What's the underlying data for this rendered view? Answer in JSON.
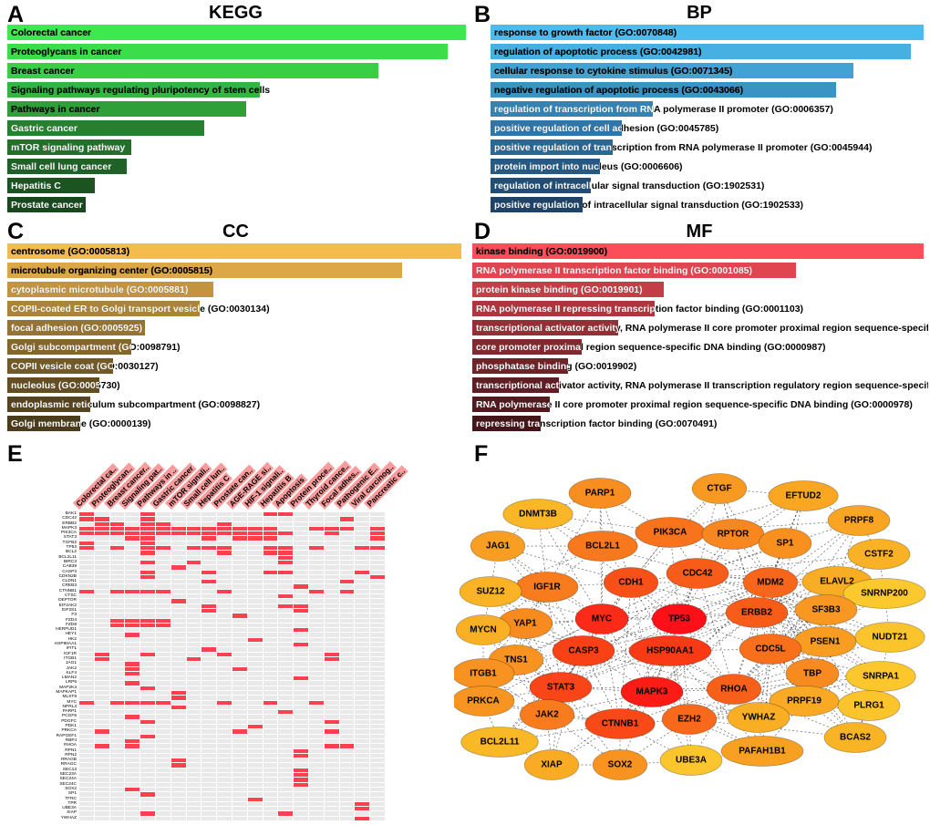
{
  "figure": {
    "panels": {
      "A": {
        "letter": "A"
      },
      "B": {
        "letter": "B"
      },
      "C": {
        "letter": "C"
      },
      "D": {
        "letter": "D"
      },
      "E": {
        "letter": "E"
      },
      "F": {
        "letter": "F"
      }
    }
  },
  "chart_data": [
    {
      "type": "bar",
      "title": "KEGG",
      "orientation": "horizontal",
      "categories": [
        "Colorectal cancer",
        "Proteoglycans in cancer",
        "Breast cancer",
        "Signaling pathways regulating pluripotency of stem cells",
        "Pathways in cancer",
        "Gastric cancer",
        "mTOR signaling pathway",
        "Small cell lung cancer",
        "Hepatitis C",
        "Prostate cancer"
      ],
      "values": [
        100,
        96,
        81,
        55,
        52,
        43,
        27,
        26,
        19,
        17
      ],
      "colors": [
        "#3ee94f",
        "#3bdd4b",
        "#38cf47",
        "#35b441",
        "#2f9f3a",
        "#287f30",
        "#23702b",
        "#1f6126",
        "#1b5421",
        "#18481d"
      ],
      "label_text_colors": [
        "#000000",
        "#000000",
        "#000000",
        "#000000",
        "#000000",
        "#ffffff",
        "#ffffff",
        "#ffffff",
        "#ffffff",
        "#ffffff"
      ]
    },
    {
      "type": "bar",
      "title": "BP",
      "orientation": "horizontal",
      "categories": [
        "response to growth factor (GO:0070848)",
        "regulation of apoptotic process (GO:0042981)",
        "cellular response to cytokine stimulus (GO:0071345)",
        "negative regulation of apoptotic process (GO:0043066)",
        "regulation of transcription from RNA polymerase II promoter (GO:0006357)",
        "positive regulation of cell adhesion (GO:0045785)",
        "positive regulation of transcription from RNA polymerase II promoter (GO:0045944)",
        "protein import into nucleus (GO:0006606)",
        "regulation of intracellular signal transduction (GO:1902531)",
        "positive regulation of intracellular signal transduction (GO:1902533)"
      ],
      "values": [
        99,
        96,
        83,
        79,
        37,
        30,
        28,
        25,
        23,
        21
      ],
      "colors": [
        "#4cbcee",
        "#47b0e2",
        "#41a2d3",
        "#3b93c3",
        "#3583b2",
        "#3075a3",
        "#2b6793",
        "#265a84",
        "#224e75",
        "#1e4367"
      ],
      "label_text_colors": [
        "#000000",
        "#000000",
        "#000000",
        "#000000",
        "#ffffff",
        "#ffffff",
        "#ffffff",
        "#ffffff",
        "#ffffff",
        "#ffffff"
      ]
    },
    {
      "type": "bar",
      "title": "CC",
      "orientation": "horizontal",
      "categories": [
        "centrosome (GO:0005813)",
        "microtubule organizing center (GO:0005815)",
        "cytoplasmic microtubule (GO:0005881)",
        "COPII-coated ER to Golgi transport vesicle (GO:0030134)",
        "focal adhesion (GO:0005925)",
        "Golgi subcompartment (GO:0098791)",
        "COPII vesicle coat (GO:0030127)",
        "nucleolus (GO:0005730)",
        "endoplasmic reticulum subcompartment (GO:0098827)",
        "Golgi membrane (GO:0000139)"
      ],
      "values": [
        99,
        86,
        45,
        42,
        30,
        27,
        23,
        20,
        18,
        16
      ],
      "colors": [
        "#f6bb4d",
        "#dca746",
        "#c29440",
        "#ab8339",
        "#967333",
        "#83652d",
        "#725928",
        "#634e24",
        "#564420",
        "#4b3c1c"
      ],
      "label_text_colors": [
        "#000000",
        "#000000",
        "#ffffff",
        "#ffffff",
        "#ffffff",
        "#ffffff",
        "#ffffff",
        "#ffffff",
        "#ffffff",
        "#ffffff"
      ]
    },
    {
      "type": "bar",
      "title": "MF",
      "orientation": "horizontal",
      "categories": [
        "kinase binding (GO:0019900)",
        "RNA polymerase II transcription factor binding (GO:0001085)",
        "protein kinase binding (GO:0019901)",
        "RNA polymerase II repressing transcription factor binding (GO:0001103)",
        "transcriptional activator activity, RNA polymerase II core promoter proximal region sequence-specific binding (G",
        "core promoter proximal region sequence-specific DNA binding (GO:0000987)",
        "phosphatase binding (GO:0019902)",
        "transcriptional activator activity, RNA polymerase II transcription regulatory region sequence-specific binding (G",
        "RNA polymerase II core promoter proximal region sequence-specific DNA binding (GO:0000978)",
        "repressing transcription factor binding (GO:0070491)"
      ],
      "values": [
        99,
        71,
        42,
        40,
        32,
        24,
        21,
        19,
        17,
        15
      ],
      "colors": [
        "#fb4e58",
        "#df4650",
        "#c43e47",
        "#ab363e",
        "#942f36",
        "#80292f",
        "#6e2329",
        "#5e1e23",
        "#501a1e",
        "#44161a"
      ],
      "label_text_colors": [
        "#000000",
        "#ffffff",
        "#ffffff",
        "#ffffff",
        "#ffffff",
        "#ffffff",
        "#ffffff",
        "#ffffff",
        "#ffffff",
        "#ffffff"
      ]
    },
    {
      "type": "heatmap",
      "hit_color": "#fb4150",
      "empty_color": "#e9e9e9",
      "header_highlight_color": "#fa9c9c",
      "columns": [
        "Colorectal ca..",
        "Proteoglycan..",
        "Breast cancer..",
        "Signaling pat..",
        "Pathways in ..",
        "Gastric cancer",
        "mTOR signali..",
        "Small cell lun..",
        "Hepatitis C",
        "Prostate can..",
        "AGE-RAGE si..",
        "HIF-1 signali..",
        "Hepatitis B",
        "Apoptosis",
        "Protein proce..",
        "Thyroid cance..",
        "Focal adhes..",
        "Pathogenic E..",
        "Viral carcinog..",
        "Pancreatic c.."
      ],
      "rows": [
        {
          "gene": "BAK1",
          "cols": [
            0,
            4,
            12,
            13
          ]
        },
        {
          "gene": "CDC42",
          "cols": [
            0,
            1,
            4,
            17
          ]
        },
        {
          "gene": "ERBB2",
          "cols": [
            1,
            2,
            4,
            5,
            9
          ]
        },
        {
          "gene": "MAPK3",
          "cols": [
            0,
            1,
            2,
            3,
            4,
            5,
            6,
            7,
            8,
            9,
            10,
            11,
            12,
            15,
            16,
            17,
            19
          ]
        },
        {
          "gene": "PIK3CA",
          "cols": [
            0,
            1,
            2,
            3,
            4,
            5,
            6,
            7,
            8,
            9,
            10,
            11,
            12,
            13,
            16,
            19
          ]
        },
        {
          "gene": "STAT3",
          "cols": [
            3,
            4,
            8,
            10,
            11,
            12,
            19
          ]
        },
        {
          "gene": "TGFB2",
          "cols": [
            0,
            4
          ]
        },
        {
          "gene": "TP53",
          "cols": [
            0,
            2,
            4,
            5,
            7,
            8,
            9,
            12,
            13,
            15,
            18,
            19
          ]
        },
        {
          "gene": "BCL2",
          "cols": [
            4,
            9,
            12,
            13
          ]
        },
        {
          "gene": "BCL2L11",
          "cols": [
            13
          ]
        },
        {
          "gene": "BIRC3",
          "cols": [
            4,
            7,
            13
          ]
        },
        {
          "gene": "CAB39",
          "cols": [
            6
          ]
        },
        {
          "gene": "CASP3",
          "cols": [
            4,
            8,
            12,
            13,
            18
          ]
        },
        {
          "gene": "CDKN2B",
          "cols": [
            4,
            19
          ]
        },
        {
          "gene": "CLDN1",
          "cols": [
            8,
            17
          ]
        },
        {
          "gene": "CREB3",
          "cols": [
            14
          ]
        },
        {
          "gene": "CTNNB1",
          "cols": [
            0,
            2,
            3,
            4,
            5,
            9,
            15,
            17
          ]
        },
        {
          "gene": "CTSC",
          "cols": [
            13
          ]
        },
        {
          "gene": "DEPTOR",
          "cols": [
            6
          ]
        },
        {
          "gene": "EIF2AK2",
          "cols": [
            8,
            13,
            14
          ]
        },
        {
          "gene": "EIF2S1",
          "cols": [
            8,
            14
          ]
        },
        {
          "gene": "F3",
          "cols": [
            10
          ]
        },
        {
          "gene": "FZD4",
          "cols": [
            2,
            3,
            4,
            5
          ]
        },
        {
          "gene": "FZD8",
          "cols": [
            2,
            3,
            4,
            5
          ]
        },
        {
          "gene": "HERPUD1",
          "cols": [
            14
          ]
        },
        {
          "gene": "HEY1",
          "cols": [
            3
          ]
        },
        {
          "gene": "HK2",
          "cols": [
            11
          ]
        },
        {
          "gene": "HSP90AA1",
          "cols": [
            14
          ]
        },
        {
          "gene": "IFIT1",
          "cols": [
            8
          ]
        },
        {
          "gene": "IGF1R",
          "cols": [
            1,
            4,
            9,
            16
          ]
        },
        {
          "gene": "ITGB1",
          "cols": [
            1,
            7,
            16
          ]
        },
        {
          "gene": "JAG1",
          "cols": [
            3
          ]
        },
        {
          "gene": "JAK2",
          "cols": [
            3,
            10
          ]
        },
        {
          "gene": "KLF4",
          "cols": [
            3
          ]
        },
        {
          "gene": "LMAN2",
          "cols": [
            14
          ]
        },
        {
          "gene": "LRP5",
          "cols": [
            3
          ]
        },
        {
          "gene": "MAP2K4",
          "cols": [
            4
          ]
        },
        {
          "gene": "MAPKAP1",
          "cols": [
            6
          ]
        },
        {
          "gene": "MLST8",
          "cols": [
            6
          ]
        },
        {
          "gene": "MYC",
          "cols": [
            0,
            2,
            3,
            4,
            5,
            9,
            12,
            15
          ]
        },
        {
          "gene": "NPRL3",
          "cols": [
            6
          ]
        },
        {
          "gene": "PARP1",
          "cols": [
            13
          ]
        },
        {
          "gene": "PCGF5",
          "cols": [
            3
          ]
        },
        {
          "gene": "PDGFC",
          "cols": [
            4,
            16
          ]
        },
        {
          "gene": "PDK1",
          "cols": [
            11
          ]
        },
        {
          "gene": "PRKCA",
          "cols": [
            1,
            10,
            16
          ]
        },
        {
          "gene": "RAPGEF1",
          "cols": [
            4
          ]
        },
        {
          "gene": "RBPJ",
          "cols": [
            3
          ]
        },
        {
          "gene": "RHOA",
          "cols": [
            1,
            3,
            16,
            17
          ]
        },
        {
          "gene": "RPN1",
          "cols": [
            14
          ]
        },
        {
          "gene": "RPN2",
          "cols": [
            14
          ]
        },
        {
          "gene": "RRAGB",
          "cols": [
            6
          ]
        },
        {
          "gene": "RRAGC",
          "cols": [
            6
          ]
        },
        {
          "gene": "SEC13",
          "cols": [
            14
          ]
        },
        {
          "gene": "SEC23A",
          "cols": [
            14
          ]
        },
        {
          "gene": "SEC24A",
          "cols": [
            14
          ]
        },
        {
          "gene": "SEC24C",
          "cols": [
            14
          ]
        },
        {
          "gene": "SOX2",
          "cols": [
            3
          ]
        },
        {
          "gene": "SP1",
          "cols": [
            4
          ]
        },
        {
          "gene": "TFRC",
          "cols": [
            11
          ]
        },
        {
          "gene": "TPR",
          "cols": [
            18
          ]
        },
        {
          "gene": "UBE3A",
          "cols": [
            18
          ]
        },
        {
          "gene": "XIAP",
          "cols": [
            4,
            13
          ]
        },
        {
          "gene": "YWHAZ",
          "cols": [
            18
          ]
        }
      ]
    },
    {
      "type": "scatter",
      "subtype": "network",
      "edge_style": "dashed",
      "hubs": [
        "TP53",
        "MYC",
        "MAPK3",
        "HSP90AA1",
        "CASP3",
        "STAT3",
        "CTNNB1",
        "CDH1",
        "CDC42",
        "ERBB2",
        "RHOA",
        "MDM2",
        "EZH2",
        "CDC5L",
        "PIK3CA",
        "BCL2L1",
        "IGF1R",
        "JAK2"
      ],
      "nodes": [
        [
          "PARP1",
          160,
          55,
          "#f88e20"
        ],
        [
          "CTGF",
          291,
          50,
          "#f89a21"
        ],
        [
          "EFTUD2",
          383,
          58,
          "#f9a723"
        ],
        [
          "DNMT3B",
          92,
          78,
          "#f9b626"
        ],
        [
          "PRPF8",
          444,
          85,
          "#f9a523"
        ],
        [
          "PIK3CA",
          237,
          98,
          "#f8731c"
        ],
        [
          "RPTOR",
          306,
          100,
          "#f8871f"
        ],
        [
          "SP1",
          363,
          110,
          "#f89020"
        ],
        [
          "JAG1",
          48,
          113,
          "#f89e22"
        ],
        [
          "BCL2L1",
          163,
          113,
          "#f8781d"
        ],
        [
          "CSTF2",
          466,
          122,
          "#f9b225"
        ],
        [
          "CDC42",
          267,
          143,
          "#f85c19"
        ],
        [
          "ELAVL2",
          420,
          152,
          "#f9ad24"
        ],
        [
          "CDH1",
          194,
          153,
          "#f85118"
        ],
        [
          "MDM2",
          347,
          153,
          "#f8661b"
        ],
        [
          "IGF1R",
          102,
          158,
          "#f87b1d"
        ],
        [
          "SUZ12",
          40,
          163,
          "#f9b325"
        ],
        [
          "SNRNP200",
          472,
          165,
          "#fbc82e"
        ],
        [
          "SF3B3",
          408,
          183,
          "#f89721"
        ],
        [
          "ERBB2",
          332,
          186,
          "#f85c19"
        ],
        [
          "MYC",
          162,
          193,
          "#fb2b17"
        ],
        [
          "TP53",
          247,
          193,
          "#fd1018"
        ],
        [
          "YAP1",
          78,
          198,
          "#f88b1f"
        ],
        [
          "MYCN",
          32,
          205,
          "#f9b025"
        ],
        [
          "NUDT21",
          478,
          213,
          "#fbc32c"
        ],
        [
          "PSEN1",
          407,
          218,
          "#f89c22"
        ],
        [
          "CDC5L",
          347,
          226,
          "#f8701c"
        ],
        [
          "CASP3",
          142,
          228,
          "#f94116"
        ],
        [
          "HSP90AA1",
          237,
          228,
          "#f93a14"
        ],
        [
          "TNS1",
          68,
          238,
          "#f89220"
        ],
        [
          "ITGB1",
          32,
          253,
          "#f89220"
        ],
        [
          "TBP",
          393,
          253,
          "#f88b1f"
        ],
        [
          "SNRPA1",
          468,
          256,
          "#fbc72d"
        ],
        [
          "STAT3",
          117,
          268,
          "#f94517"
        ],
        [
          "RHOA",
          307,
          270,
          "#f8601a"
        ],
        [
          "MAPK3",
          217,
          273,
          "#fc1c15"
        ],
        [
          "PRKCA",
          32,
          283,
          "#f89521"
        ],
        [
          "PRPF19",
          384,
          283,
          "#f9a923"
        ],
        [
          "PLRG1",
          455,
          288,
          "#fbc42c"
        ],
        [
          "JAK2",
          102,
          298,
          "#f87b1d"
        ],
        [
          "YWHAZ",
          334,
          301,
          "#f9ae24"
        ],
        [
          "EZH2",
          258,
          303,
          "#f8691b"
        ],
        [
          "CTNNB1",
          182,
          308,
          "#f94917"
        ],
        [
          "BCAS2",
          440,
          323,
          "#f9b425"
        ],
        [
          "BCL2L11",
          50,
          328,
          "#f9b826"
        ],
        [
          "PAFAH1B1",
          338,
          338,
          "#f8a022"
        ],
        [
          "UBE3A",
          260,
          348,
          "#fbc52d"
        ],
        [
          "SOX2",
          182,
          353,
          "#f89320"
        ],
        [
          "XIAP",
          107,
          353,
          "#f9ab24"
        ]
      ]
    }
  ]
}
